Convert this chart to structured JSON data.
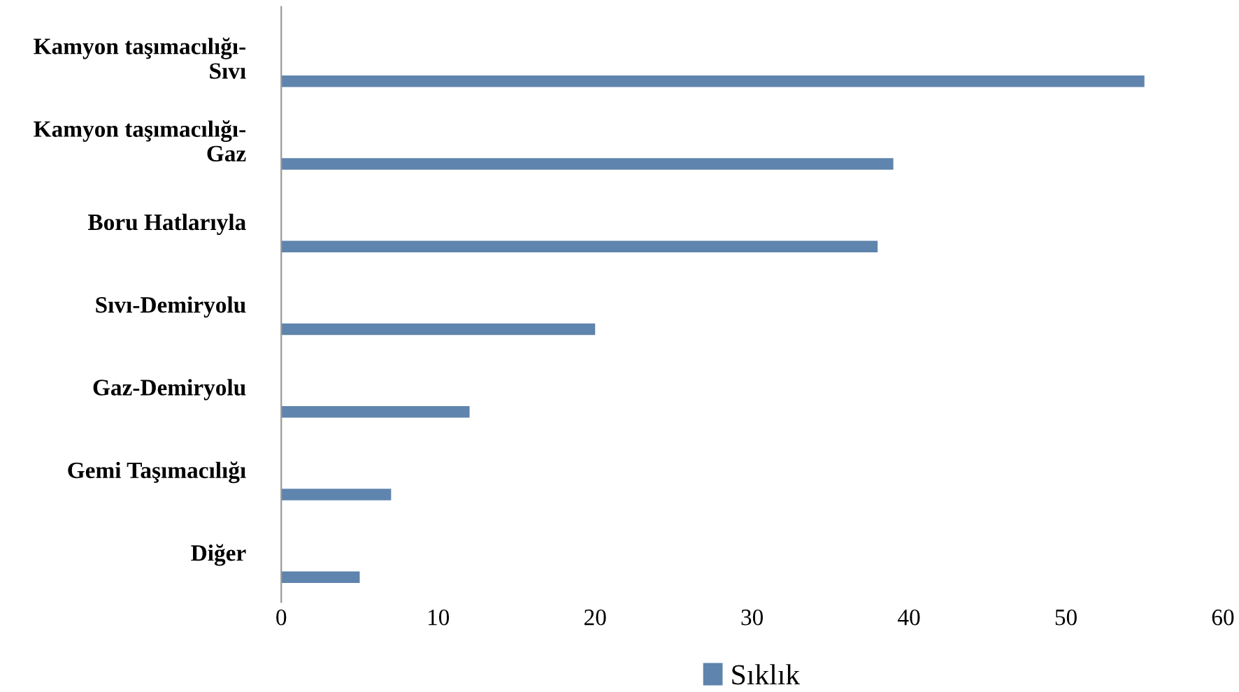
{
  "chart_data": {
    "type": "bar",
    "orientation": "horizontal",
    "categories": [
      "Kamyon taşımacılığı-\nSıvı",
      "Kamyon taşımacılığı-\nGaz",
      "Boru Hatlarıyla",
      "Sıvı-Demiryolu",
      "Gaz-Demiryolu",
      "Gemi Taşımacılığı",
      "Diğer"
    ],
    "series": [
      {
        "name": "Sıklık",
        "color": "#5f84ad",
        "values": [
          55,
          39,
          38,
          20,
          12,
          7,
          5
        ]
      }
    ],
    "xlim": [
      0,
      60
    ],
    "xticks": [
      0,
      10,
      20,
      30,
      40,
      50,
      60
    ],
    "grid": false,
    "legend": "bottom"
  }
}
